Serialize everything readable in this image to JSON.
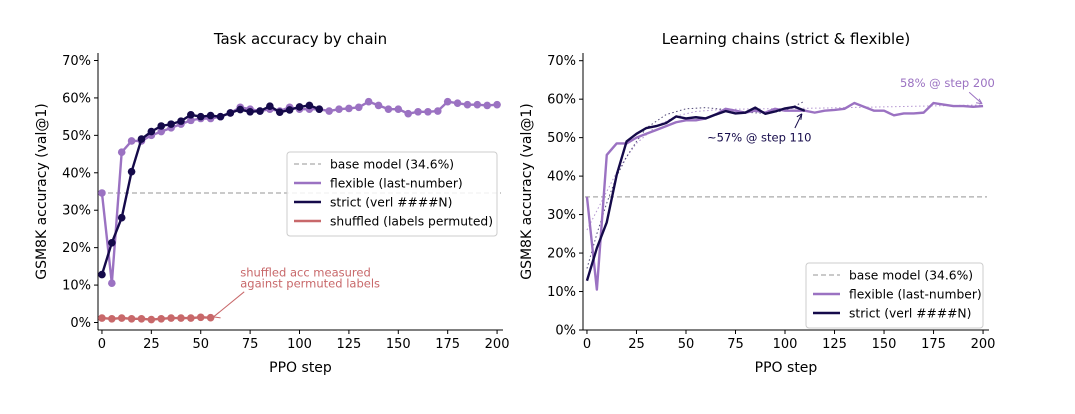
{
  "colors": {
    "flexible": "#9b72c2",
    "strict": "#150a4a",
    "shuffled": "#c8686a",
    "base": "#aaaaaa",
    "annotation_strict": "#150a4a",
    "annotation_flexible": "#9b72c2"
  },
  "chart_data": [
    {
      "type": "line",
      "title": "Task accuracy by chain",
      "xlabel": "PPO step",
      "ylabel": "GSM8K accuracy (val@1)",
      "xlim": [
        -2,
        203
      ],
      "ylim": [
        -2,
        72
      ],
      "xticks": [
        0,
        25,
        50,
        75,
        100,
        125,
        150,
        175,
        200
      ],
      "yticks": [
        {
          "value": 0,
          "label": "0%"
        },
        {
          "value": 10,
          "label": "10%"
        },
        {
          "value": 20,
          "label": "20%"
        },
        {
          "value": 30,
          "label": "30%"
        },
        {
          "value": 40,
          "label": "40%"
        },
        {
          "value": 50,
          "label": "50%"
        },
        {
          "value": 60,
          "label": "60%"
        },
        {
          "value": 70,
          "label": "70%"
        }
      ],
      "grid": false,
      "legend_position": "right",
      "legend": [
        {
          "key": "base",
          "label": "base model (34.6%)",
          "style": "dashed"
        },
        {
          "key": "flexible",
          "label": "flexible (last-number)",
          "style": "solid"
        },
        {
          "key": "strict",
          "label": "strict (verl ####N)",
          "style": "solid"
        },
        {
          "key": "shuffled",
          "label": "shuffled (labels permuted)",
          "style": "solid"
        }
      ],
      "baseline": 34.6,
      "series": [
        {
          "name": "flexible (last-number)",
          "key": "flexible",
          "markers": true,
          "x": [
            0,
            5,
            10,
            15,
            20,
            25,
            30,
            35,
            40,
            45,
            50,
            55,
            60,
            65,
            70,
            75,
            80,
            85,
            90,
            95,
            100,
            105,
            110,
            115,
            120,
            125,
            130,
            135,
            140,
            145,
            150,
            155,
            160,
            165,
            170,
            175,
            180,
            185,
            190,
            195,
            200
          ],
          "y": [
            34.6,
            10.5,
            45.5,
            48.5,
            48.5,
            50,
            51,
            52,
            53,
            54,
            54.5,
            54.5,
            55,
            56,
            57.5,
            57,
            56.5,
            57,
            56.5,
            57.5,
            57,
            57,
            57,
            56.5,
            57,
            57.2,
            57.5,
            59,
            58,
            57,
            57,
            55.8,
            56.3,
            56.3,
            56.5,
            59,
            58.6,
            58.2,
            58.2,
            58,
            58.2
          ]
        },
        {
          "name": "strict (verl ####N)",
          "key": "strict",
          "markers": true,
          "x": [
            0,
            5,
            10,
            15,
            20,
            25,
            30,
            35,
            40,
            45,
            50,
            55,
            60,
            65,
            70,
            75,
            80,
            85,
            90,
            95,
            100,
            105,
            110
          ],
          "y": [
            12.8,
            21.3,
            28,
            40.3,
            49,
            51,
            52.5,
            53,
            53.8,
            55.5,
            55,
            55.3,
            55,
            56,
            56.9,
            56.3,
            56.5,
            57.8,
            56.2,
            56.8,
            57.6,
            58,
            57
          ]
        },
        {
          "name": "shuffled (labels permuted)",
          "key": "shuffled",
          "markers": true,
          "x": [
            0,
            5,
            10,
            15,
            20,
            25,
            30,
            35,
            40,
            45,
            50,
            55
          ],
          "y": [
            1.2,
            1,
            1.2,
            1,
            1,
            0.8,
            1,
            1.2,
            1.2,
            1.2,
            1.4,
            1.3
          ]
        }
      ],
      "annotations": [
        {
          "text": "shuffled acc measured",
          "x": 70,
          "y": 12.3,
          "key": "shuffled"
        },
        {
          "text": "against permuted labels",
          "x": 70,
          "y": 9.3,
          "key": "shuffled"
        }
      ]
    },
    {
      "type": "line",
      "title": "Learning chains (strict & flexible)",
      "xlabel": "PPO step",
      "ylabel": "GSM8K accuracy (val@1)",
      "xlim": [
        -2,
        203
      ],
      "ylim": [
        0,
        72
      ],
      "xticks": [
        0,
        25,
        50,
        75,
        100,
        125,
        150,
        175,
        200
      ],
      "yticks": [
        {
          "value": 0,
          "label": "0%"
        },
        {
          "value": 10,
          "label": "10%"
        },
        {
          "value": 20,
          "label": "20%"
        },
        {
          "value": 30,
          "label": "30%"
        },
        {
          "value": 40,
          "label": "40%"
        },
        {
          "value": 50,
          "label": "50%"
        },
        {
          "value": 60,
          "label": "60%"
        },
        {
          "value": 70,
          "label": "70%"
        }
      ],
      "grid": false,
      "legend_position": "lower right",
      "legend": [
        {
          "key": "base",
          "label": "base model (34.6%)",
          "style": "dashed"
        },
        {
          "key": "flexible",
          "label": "flexible (last-number)",
          "style": "solid"
        },
        {
          "key": "strict",
          "label": "strict (verl ####N)",
          "style": "solid"
        }
      ],
      "baseline": 34.6,
      "series": [
        {
          "name": "flexible (last-number)",
          "key": "flexible",
          "markers": false,
          "x": [
            0,
            5,
            10,
            15,
            20,
            25,
            30,
            35,
            40,
            45,
            50,
            55,
            60,
            65,
            70,
            75,
            80,
            85,
            90,
            95,
            100,
            105,
            110,
            115,
            120,
            125,
            130,
            135,
            140,
            145,
            150,
            155,
            160,
            165,
            170,
            175,
            180,
            185,
            190,
            195,
            200
          ],
          "y": [
            34.6,
            10.5,
            45.5,
            48.5,
            48.5,
            50,
            51,
            52,
            53,
            54,
            54.5,
            54.5,
            55,
            56,
            57.5,
            57,
            56.5,
            57,
            56.5,
            57.5,
            57,
            57,
            57,
            56.5,
            57,
            57.2,
            57.5,
            59,
            58,
            57,
            57,
            55.8,
            56.3,
            56.3,
            56.5,
            59,
            58.6,
            58.2,
            58.2,
            58,
            58.2
          ]
        },
        {
          "name": "strict (verl ####N)",
          "key": "strict",
          "markers": false,
          "x": [
            0,
            5,
            10,
            15,
            20,
            25,
            30,
            35,
            40,
            45,
            50,
            55,
            60,
            65,
            70,
            75,
            80,
            85,
            90,
            95,
            100,
            105,
            110
          ],
          "y": [
            12.8,
            21.3,
            28,
            40.3,
            49,
            51,
            52.5,
            53,
            53.8,
            55.5,
            55,
            55.3,
            55,
            56,
            56.9,
            56.3,
            56.5,
            57.8,
            56.2,
            56.8,
            57.6,
            58,
            57
          ]
        }
      ],
      "fits": [
        {
          "key": "flexible",
          "x": [
            0,
            5,
            10,
            15,
            20,
            25,
            35,
            45,
            55,
            65,
            75,
            90,
            105,
            120,
            140,
            160,
            180,
            200
          ],
          "y": [
            26,
            31,
            36,
            41,
            45,
            48.5,
            53,
            55.6,
            56.8,
            57.2,
            57.4,
            57.5,
            57.6,
            57.7,
            57.9,
            58.1,
            58.3,
            58.5
          ]
        },
        {
          "key": "strict",
          "x": [
            0,
            5,
            10,
            15,
            20,
            25,
            30,
            40,
            50,
            60,
            70,
            80,
            90,
            100,
            110
          ],
          "y": [
            16,
            25,
            33,
            40,
            45,
            49,
            52.5,
            56,
            57.5,
            57.8,
            57.3,
            56.6,
            56.3,
            57,
            59.5
          ]
        }
      ],
      "annotations": [
        {
          "text": "~57% @ step 110",
          "x": 87,
          "y": 49,
          "key": "strict",
          "target_x": 110,
          "target_y": 57
        },
        {
          "text": "58% @ step 200",
          "x": 182,
          "y": 63.2,
          "key": "flexible",
          "target_x": 200,
          "target_y": 58.2
        }
      ]
    }
  ]
}
